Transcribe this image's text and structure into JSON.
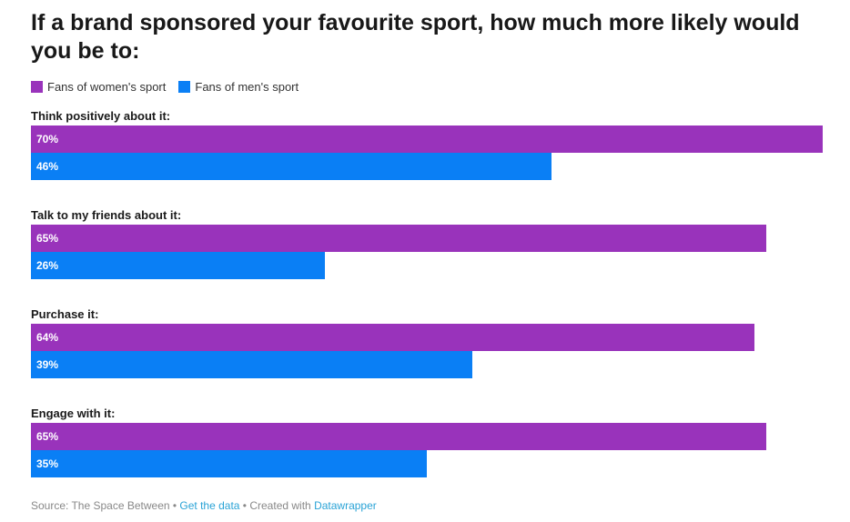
{
  "title": "If a brand sponsored your favourite sport, how much more likely would you be to:",
  "colors": {
    "women": "#9933bb",
    "men": "#0a7ff5"
  },
  "legend": [
    {
      "label": "Fans of women's sport",
      "color": "#9933bb"
    },
    {
      "label": "Fans of men's sport",
      "color": "#0a7ff5"
    }
  ],
  "chart_data": {
    "type": "bar",
    "orientation": "horizontal",
    "title": "If a brand sponsored your favourite sport, how much more likely would you be to:",
    "categories": [
      "Think positively about it:",
      "Talk to my friends about it:",
      "Purchase it:",
      "Engage with it:"
    ],
    "series": [
      {
        "name": "Fans of women's sport",
        "values": [
          70,
          65,
          64,
          65
        ],
        "labels": [
          "70%",
          "65%",
          "64%",
          "65%"
        ]
      },
      {
        "name": "Fans of men's sport",
        "values": [
          46,
          26,
          39,
          35
        ],
        "labels": [
          "46%",
          "26%",
          "39%",
          "35%"
        ]
      }
    ],
    "xlim": [
      0,
      70
    ],
    "grid": false,
    "legend_position": "top-left"
  },
  "footer": {
    "source_text": "Source: The Space Between",
    "separator": " • ",
    "get_data_link": "Get the data",
    "created_with_text": "Created with",
    "datawrapper_link": "Datawrapper"
  }
}
